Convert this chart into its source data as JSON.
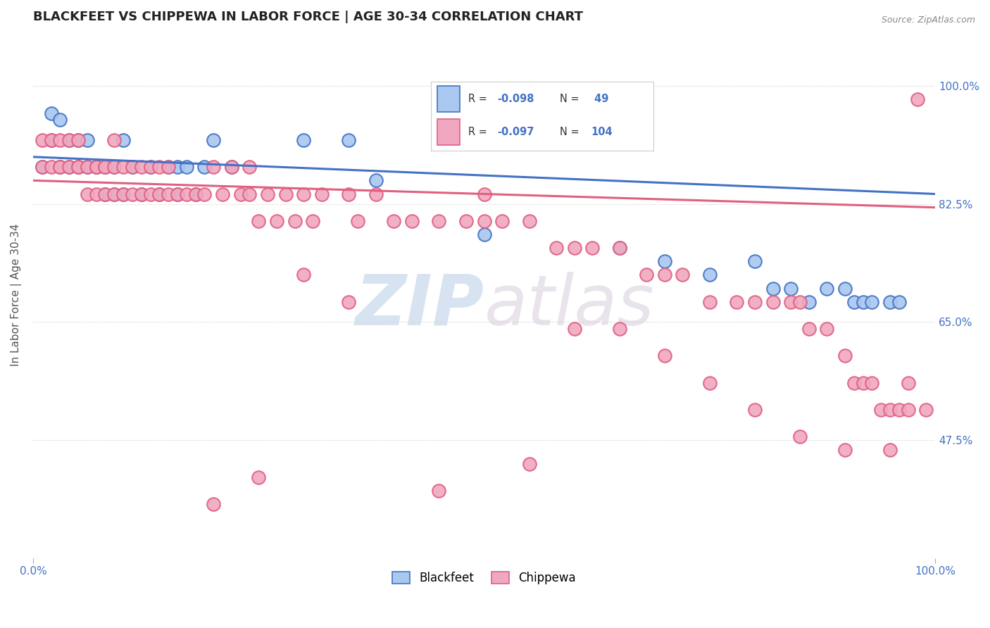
{
  "title": "BLACKFEET VS CHIPPEWA IN LABOR FORCE | AGE 30-34 CORRELATION CHART",
  "source_text": "Source: ZipAtlas.com",
  "ylabel": "In Labor Force | Age 30-34",
  "xlim": [
    0.0,
    1.0
  ],
  "ylim": [
    0.3,
    1.08
  ],
  "yticks": [
    0.475,
    0.65,
    0.825,
    1.0
  ],
  "ytick_labels": [
    "47.5%",
    "65.0%",
    "82.5%",
    "100.0%"
  ],
  "xtick_labels": [
    "0.0%",
    "100.0%"
  ],
  "r_blackfeet": -0.098,
  "n_blackfeet": 49,
  "r_chippewa": -0.097,
  "n_chippewa": 104,
  "blackfeet_color": "#a8c8f0",
  "chippewa_color": "#f0a8c0",
  "trend_blackfeet_color": "#4472c4",
  "trend_chippewa_color": "#e06080",
  "watermark_color": "#dde5f0",
  "background_color": "#ffffff",
  "blackfeet_trend_start": 0.895,
  "blackfeet_trend_end": 0.84,
  "chippewa_trend_start": 0.86,
  "chippewa_trend_end": 0.82,
  "blackfeet_x": [
    0.01,
    0.02,
    0.02,
    0.03,
    0.03,
    0.04,
    0.04,
    0.05,
    0.05,
    0.06,
    0.06,
    0.07,
    0.07,
    0.08,
    0.08,
    0.09,
    0.09,
    0.1,
    0.1,
    0.11,
    0.12,
    0.13,
    0.14,
    0.15,
    0.16,
    0.16,
    0.17,
    0.18,
    0.19,
    0.2,
    0.22,
    0.3,
    0.35,
    0.38,
    0.5,
    0.65,
    0.7,
    0.75,
    0.8,
    0.82,
    0.84,
    0.86,
    0.88,
    0.9,
    0.91,
    0.92,
    0.93,
    0.95,
    0.96
  ],
  "blackfeet_y": [
    0.88,
    0.92,
    0.96,
    0.88,
    0.95,
    0.88,
    0.92,
    0.88,
    0.92,
    0.88,
    0.92,
    0.88,
    0.88,
    0.84,
    0.88,
    0.84,
    0.88,
    0.84,
    0.92,
    0.88,
    0.84,
    0.88,
    0.84,
    0.88,
    0.84,
    0.88,
    0.88,
    0.84,
    0.88,
    0.92,
    0.88,
    0.92,
    0.92,
    0.86,
    0.78,
    0.76,
    0.74,
    0.72,
    0.74,
    0.7,
    0.7,
    0.68,
    0.7,
    0.7,
    0.68,
    0.68,
    0.68,
    0.68,
    0.68
  ],
  "chippewa_x": [
    0.01,
    0.01,
    0.02,
    0.02,
    0.03,
    0.03,
    0.03,
    0.04,
    0.04,
    0.05,
    0.05,
    0.05,
    0.06,
    0.06,
    0.07,
    0.07,
    0.07,
    0.08,
    0.08,
    0.08,
    0.09,
    0.09,
    0.09,
    0.1,
    0.1,
    0.11,
    0.11,
    0.12,
    0.12,
    0.13,
    0.13,
    0.14,
    0.14,
    0.15,
    0.15,
    0.16,
    0.17,
    0.18,
    0.19,
    0.2,
    0.21,
    0.22,
    0.23,
    0.24,
    0.24,
    0.25,
    0.26,
    0.27,
    0.28,
    0.29,
    0.3,
    0.31,
    0.32,
    0.35,
    0.36,
    0.38,
    0.4,
    0.42,
    0.45,
    0.48,
    0.5,
    0.5,
    0.52,
    0.55,
    0.58,
    0.6,
    0.62,
    0.65,
    0.68,
    0.7,
    0.72,
    0.75,
    0.78,
    0.8,
    0.82,
    0.84,
    0.85,
    0.86,
    0.88,
    0.9,
    0.91,
    0.92,
    0.93,
    0.94,
    0.95,
    0.96,
    0.97,
    0.97,
    0.98,
    0.99,
    0.3,
    0.35,
    0.6,
    0.65,
    0.7,
    0.75,
    0.8,
    0.85,
    0.9,
    0.95,
    0.25,
    0.55,
    0.2,
    0.45
  ],
  "chippewa_y": [
    0.88,
    0.92,
    0.88,
    0.92,
    0.88,
    0.92,
    0.88,
    0.88,
    0.92,
    0.88,
    0.92,
    0.88,
    0.84,
    0.88,
    0.88,
    0.84,
    0.88,
    0.88,
    0.84,
    0.88,
    0.84,
    0.88,
    0.92,
    0.88,
    0.84,
    0.88,
    0.84,
    0.88,
    0.84,
    0.84,
    0.88,
    0.84,
    0.88,
    0.84,
    0.88,
    0.84,
    0.84,
    0.84,
    0.84,
    0.88,
    0.84,
    0.88,
    0.84,
    0.88,
    0.84,
    0.8,
    0.84,
    0.8,
    0.84,
    0.8,
    0.84,
    0.8,
    0.84,
    0.84,
    0.8,
    0.84,
    0.8,
    0.8,
    0.8,
    0.8,
    0.8,
    0.84,
    0.8,
    0.8,
    0.76,
    0.76,
    0.76,
    0.76,
    0.72,
    0.72,
    0.72,
    0.68,
    0.68,
    0.68,
    0.68,
    0.68,
    0.68,
    0.64,
    0.64,
    0.6,
    0.56,
    0.56,
    0.56,
    0.52,
    0.52,
    0.52,
    0.52,
    0.56,
    0.98,
    0.52,
    0.72,
    0.68,
    0.64,
    0.64,
    0.6,
    0.56,
    0.52,
    0.48,
    0.46,
    0.46,
    0.42,
    0.44,
    0.38,
    0.4
  ]
}
